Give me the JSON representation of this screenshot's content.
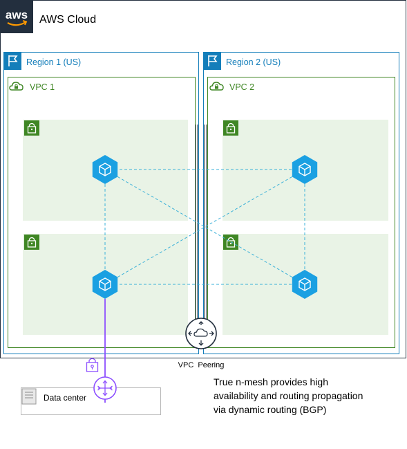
{
  "cloud": {
    "title": "AWS Cloud",
    "logo_text": "aws"
  },
  "regions": [
    {
      "label": "Region 1 (US)",
      "vpc": {
        "label": "VPC 1"
      }
    },
    {
      "label": "Region 2 (US)",
      "vpc": {
        "label": "VPC 2"
      }
    }
  ],
  "peering": {
    "label": "VPC  Peering"
  },
  "datacenter": {
    "label": "Data center"
  },
  "note": {
    "lines": [
      "True n-mesh provides high",
      "availability and routing propagation",
      "via dynamic routing (BGP)"
    ]
  },
  "colors": {
    "region_border": "#147eba",
    "vpc_border": "#3f8624",
    "subnet_fill": "#e9f3e6",
    "subnet_icon": "#3f8624",
    "instance": "#1ba0e2",
    "mesh_line": "#3ab0d8",
    "vpn_line": "#8c4fff",
    "dark": "#232f3e"
  },
  "icons": {
    "cloud": "aws-cloud-logo",
    "region": "region-flag-icon",
    "vpc": "vpc-cloud-lock-icon",
    "subnet": "private-subnet-lock-icon",
    "instance": "hexagon-cube-icon",
    "peering": "peering-router-icon",
    "vpn": "vpn-lock-icon",
    "gateway": "virtual-private-gateway-icon",
    "datacenter": "server-icon"
  }
}
